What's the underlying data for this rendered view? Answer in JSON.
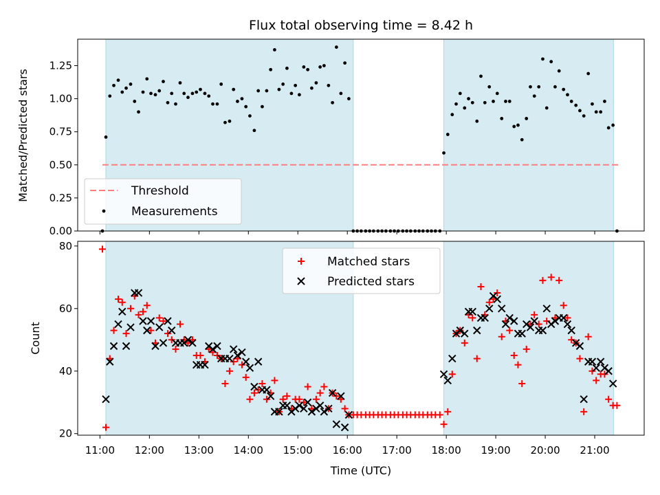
{
  "title": "Flux total observing time = 8.42 h",
  "colors": {
    "shade": "#add8e6",
    "threshold": "#ff7f7f",
    "matched": "#ff0000",
    "predicted": "#000000",
    "measurement": "#000000"
  },
  "chart_data": [
    {
      "type": "scatter",
      "panel": "top",
      "title": "Flux total observing time = 8.42 h",
      "xlabel": "",
      "ylabel": "Matched/Predicted stars",
      "xlim": [
        10.55,
        22.0
      ],
      "ylim": [
        0,
        1.45
      ],
      "yticks": [
        0.0,
        0.25,
        0.5,
        0.75,
        1.0,
        1.25
      ],
      "ytick_labels": [
        "0.00",
        "0.25",
        "0.50",
        "0.75",
        "1.00",
        "1.25"
      ],
      "shaded_ranges": [
        [
          11.12,
          16.12
        ],
        [
          17.95,
          21.38
        ]
      ],
      "threshold": {
        "label": "Threshold",
        "value": 0.5,
        "x": [
          11.05,
          21.5
        ]
      },
      "legend": {
        "location": "lower-left",
        "entries": [
          "Threshold",
          "Measurements"
        ]
      },
      "series": [
        {
          "name": "Measurements",
          "x": [
            11.05,
            11.12,
            11.2,
            11.28,
            11.37,
            11.45,
            11.53,
            11.62,
            11.7,
            11.78,
            11.87,
            11.95,
            12.03,
            12.12,
            12.2,
            12.28,
            12.37,
            12.45,
            12.53,
            12.62,
            12.7,
            12.78,
            12.87,
            12.95,
            13.03,
            13.12,
            13.2,
            13.28,
            13.37,
            13.45,
            13.53,
            13.62,
            13.7,
            13.78,
            13.87,
            13.95,
            14.03,
            14.12,
            14.2,
            14.28,
            14.37,
            14.45,
            14.53,
            14.62,
            14.7,
            14.78,
            14.87,
            14.95,
            15.03,
            15.12,
            15.2,
            15.28,
            15.37,
            15.45,
            15.53,
            15.62,
            15.7,
            15.78,
            15.87,
            15.95,
            16.03,
            16.12,
            16.2,
            16.28,
            16.37,
            16.45,
            16.53,
            16.62,
            16.7,
            16.78,
            16.87,
            16.95,
            17.03,
            17.12,
            17.2,
            17.28,
            17.37,
            17.45,
            17.53,
            17.62,
            17.7,
            17.78,
            17.87,
            17.95,
            18.03,
            18.12,
            18.2,
            18.28,
            18.37,
            18.45,
            18.53,
            18.62,
            18.7,
            18.78,
            18.87,
            18.95,
            19.03,
            19.12,
            19.2,
            19.28,
            19.37,
            19.45,
            19.53,
            19.62,
            19.7,
            19.78,
            19.87,
            19.95,
            20.03,
            20.12,
            20.2,
            20.28,
            20.37,
            20.45,
            20.53,
            20.62,
            20.7,
            20.78,
            20.87,
            20.95,
            21.03,
            21.12,
            21.2,
            21.28,
            21.37,
            21.45
          ],
          "y": [
            0.0,
            0.71,
            1.02,
            1.1,
            1.14,
            1.05,
            1.08,
            1.11,
            0.98,
            0.9,
            1.05,
            1.15,
            1.04,
            1.03,
            1.06,
            1.13,
            0.97,
            1.04,
            0.96,
            1.12,
            1.04,
            1.01,
            1.04,
            1.05,
            1.07,
            1.04,
            1.02,
            0.96,
            0.96,
            1.11,
            0.82,
            0.83,
            1.07,
            0.98,
            1.0,
            0.94,
            0.87,
            0.76,
            1.06,
            0.94,
            1.06,
            1.22,
            1.37,
            1.07,
            1.11,
            1.23,
            1.04,
            1.1,
            1.03,
            1.24,
            1.22,
            1.08,
            1.12,
            1.24,
            1.25,
            1.1,
            0.97,
            1.39,
            1.04,
            1.27,
            1.0,
            0.0,
            0.0,
            0.0,
            0.0,
            0.0,
            0.0,
            0.0,
            0.0,
            0.0,
            0.0,
            0.0,
            0.0,
            0.0,
            0.0,
            0.0,
            0.0,
            0.0,
            0.0,
            0.0,
            0.0,
            0.0,
            0.0,
            0.59,
            0.73,
            0.88,
            0.96,
            1.04,
            0.93,
            1.0,
            0.97,
            0.83,
            1.17,
            0.97,
            1.09,
            0.98,
            1.04,
            0.85,
            0.98,
            0.98,
            0.79,
            0.8,
            0.69,
            0.85,
            1.09,
            1.02,
            1.09,
            1.3,
            0.93,
            1.28,
            1.09,
            1.21,
            1.07,
            1.03,
            0.98,
            0.95,
            0.91,
            0.87,
            1.19,
            0.96,
            0.9,
            0.9,
            0.98,
            0.78,
            0.8,
            0.0
          ]
        }
      ]
    },
    {
      "type": "scatter",
      "panel": "bottom",
      "xlabel": "Time (UTC)",
      "ylabel": "Count",
      "xlim": [
        10.55,
        22.0
      ],
      "ylim": [
        19.5,
        81.5
      ],
      "yticks": [
        20,
        40,
        60,
        80
      ],
      "ytick_labels": [
        "20",
        "40",
        "60",
        "80"
      ],
      "xticks": [
        11,
        12,
        13,
        14,
        15,
        16,
        17,
        18,
        19,
        20,
        21
      ],
      "xtick_labels": [
        "11:00",
        "12:00",
        "13:00",
        "14:00",
        "15:00",
        "16:00",
        "17:00",
        "18:00",
        "19:00",
        "20:00",
        "21:00"
      ],
      "shaded_ranges": [
        [
          11.12,
          16.12
        ],
        [
          17.95,
          21.38
        ]
      ],
      "legend": {
        "location": "top-center",
        "entries": [
          "Matched stars",
          "Predicted stars"
        ]
      },
      "series": [
        {
          "name": "Matched stars",
          "marker": "plus",
          "x": [
            11.05,
            11.12,
            11.2,
            11.28,
            11.37,
            11.45,
            11.53,
            11.62,
            11.7,
            11.78,
            11.87,
            11.95,
            12.03,
            12.12,
            12.2,
            12.28,
            12.37,
            12.45,
            12.53,
            12.62,
            12.7,
            12.78,
            12.87,
            12.95,
            13.03,
            13.12,
            13.2,
            13.28,
            13.37,
            13.45,
            13.53,
            13.62,
            13.7,
            13.78,
            13.87,
            13.95,
            14.03,
            14.12,
            14.2,
            14.28,
            14.37,
            14.45,
            14.53,
            14.62,
            14.7,
            14.78,
            14.87,
            14.95,
            15.03,
            15.12,
            15.2,
            15.28,
            15.37,
            15.45,
            15.53,
            15.62,
            15.7,
            15.78,
            15.87,
            15.95,
            16.03,
            16.12,
            16.2,
            16.28,
            16.37,
            16.45,
            16.53,
            16.62,
            16.7,
            16.78,
            16.87,
            16.95,
            17.03,
            17.12,
            17.2,
            17.28,
            17.37,
            17.45,
            17.53,
            17.62,
            17.7,
            17.78,
            17.87,
            17.95,
            18.03,
            18.12,
            18.2,
            18.28,
            18.37,
            18.45,
            18.53,
            18.62,
            18.7,
            18.78,
            18.87,
            18.95,
            19.03,
            19.12,
            19.2,
            19.28,
            19.37,
            19.45,
            19.53,
            19.62,
            19.7,
            19.78,
            19.87,
            19.95,
            20.03,
            20.12,
            20.2,
            20.28,
            20.37,
            20.45,
            20.53,
            20.62,
            20.7,
            20.78,
            20.87,
            20.95,
            21.03,
            21.12,
            21.2,
            21.28,
            21.37,
            21.45
          ],
          "y": [
            79,
            22,
            44,
            53,
            63,
            62,
            52,
            60,
            64,
            58,
            59,
            61,
            53,
            49,
            57,
            56,
            52,
            50,
            47,
            55,
            50,
            49,
            50,
            45,
            45,
            43,
            47,
            46,
            45,
            44,
            36,
            40,
            43,
            44,
            42,
            38,
            31,
            33,
            34,
            36,
            31,
            33,
            37,
            27,
            31,
            32,
            28,
            31,
            31,
            30,
            35,
            28,
            31,
            33,
            35,
            28,
            33,
            32,
            31,
            28,
            26,
            26,
            26,
            26,
            26,
            26,
            26,
            26,
            26,
            26,
            26,
            26,
            26,
            26,
            26,
            26,
            26,
            26,
            26,
            26,
            26,
            26,
            26,
            23,
            27,
            39,
            52,
            53,
            49,
            58,
            57,
            44,
            67,
            58,
            62,
            63,
            65,
            51,
            56,
            53,
            45,
            42,
            36,
            47,
            55,
            58,
            55,
            69,
            56,
            70,
            57,
            69,
            61,
            57,
            50,
            49,
            44,
            27,
            51,
            40,
            37,
            39,
            39,
            31,
            29,
            29
          ]
        },
        {
          "name": "Predicted stars",
          "marker": "x",
          "x": [
            11.12,
            11.2,
            11.28,
            11.37,
            11.45,
            11.53,
            11.62,
            11.7,
            11.78,
            11.87,
            11.95,
            12.03,
            12.12,
            12.2,
            12.28,
            12.37,
            12.45,
            12.53,
            12.62,
            12.7,
            12.78,
            12.87,
            12.95,
            13.03,
            13.12,
            13.2,
            13.28,
            13.37,
            13.45,
            13.53,
            13.62,
            13.7,
            13.78,
            13.87,
            13.95,
            14.03,
            14.12,
            14.2,
            14.28,
            14.37,
            14.45,
            14.53,
            14.62,
            14.7,
            14.78,
            14.87,
            14.95,
            15.03,
            15.12,
            15.2,
            15.28,
            15.37,
            15.45,
            15.53,
            15.62,
            15.7,
            15.78,
            15.87,
            15.95,
            16.03,
            17.95,
            18.03,
            18.12,
            18.2,
            18.28,
            18.37,
            18.45,
            18.53,
            18.62,
            18.7,
            18.78,
            18.87,
            18.95,
            19.03,
            19.12,
            19.2,
            19.28,
            19.37,
            19.45,
            19.53,
            19.62,
            19.7,
            19.78,
            19.87,
            19.95,
            20.03,
            20.12,
            20.2,
            20.28,
            20.37,
            20.45,
            20.53,
            20.62,
            20.7,
            20.78,
            20.87,
            20.95,
            21.03,
            21.12,
            21.2,
            21.28,
            21.37
          ],
          "y": [
            31,
            43,
            48,
            55,
            59,
            48,
            54,
            65,
            65,
            56,
            53,
            56,
            48,
            54,
            49,
            56,
            53,
            49,
            49,
            49,
            50,
            49,
            42,
            42,
            42,
            48,
            47,
            48,
            44,
            44,
            44,
            47,
            45,
            46,
            43,
            41,
            35,
            43,
            34,
            34,
            32,
            27,
            27,
            29,
            29,
            27,
            28,
            29,
            28,
            30,
            27,
            28,
            29,
            27,
            28,
            33,
            23,
            32,
            22,
            26,
            39,
            37,
            44,
            52,
            53,
            52,
            59,
            59,
            53,
            57,
            57,
            60,
            64,
            63,
            60,
            55,
            57,
            56,
            52,
            52,
            55,
            54,
            56,
            53,
            53,
            60,
            55,
            56,
            57,
            57,
            55,
            53,
            49,
            48,
            31,
            43,
            43,
            41,
            43,
            41,
            40,
            36
          ]
        }
      ]
    }
  ]
}
